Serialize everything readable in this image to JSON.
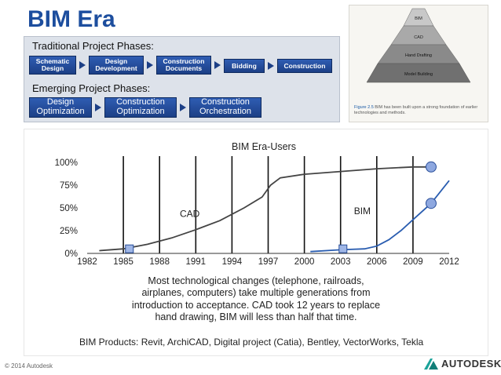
{
  "slide": {
    "title": "BIM Era",
    "copyright": "© 2014 Autodesk",
    "logo_text": "AUTODESK.",
    "accent_color": "#1d4e9e"
  },
  "phases": {
    "traditional_heading": "Traditional Project Phases:",
    "traditional": [
      "Schematic Design",
      "Design Development",
      "Construction Documents",
      "Bidding",
      "Construction"
    ],
    "emerging_heading": "Emerging Project Phases:",
    "emerging": [
      "Design Optimization",
      "Construction Optimization",
      "Construction Orchestration"
    ]
  },
  "pyramid": {
    "levels": [
      "BIM",
      "CAD",
      "Hand Drafting",
      "Model Building"
    ],
    "caption_fig": "Figure 2.5",
    "caption_text": "BIM has been built upon a strong foundation of earlier technologies and methods."
  },
  "chart_data": {
    "type": "line",
    "title": "BIM Era-Users",
    "x_ticks": [
      "1982",
      "1985",
      "1988",
      "1991",
      "1994",
      "1997",
      "2000",
      "2003",
      "2006",
      "2009",
      "2012"
    ],
    "y_ticks": [
      "0%",
      "25%",
      "50%",
      "75%",
      "100%"
    ],
    "xlim": [
      1982,
      2012
    ],
    "ylim": [
      0,
      100
    ],
    "series": [
      {
        "name": "CAD",
        "x": [
          1983,
          1985,
          1987,
          1989,
          1991,
          1993,
          1995,
          1996.5,
          1997.2,
          1998,
          2000,
          2003,
          2006,
          2009,
          2010.5
        ],
        "values": [
          3,
          5,
          10,
          17,
          26,
          36,
          50,
          62,
          75,
          83,
          87,
          90,
          93,
          95,
          95
        ]
      },
      {
        "name": "BIM",
        "x": [
          2000.5,
          2003,
          2005,
          2006,
          2007,
          2008,
          2009,
          2010.5,
          2012
        ],
        "values": [
          2,
          4,
          5,
          8,
          15,
          25,
          37,
          55,
          80
        ]
      }
    ],
    "markers": [
      {
        "shape": "square",
        "x": 1985.5,
        "y": 5
      },
      {
        "shape": "square",
        "x": 2003.2,
        "y": 5
      },
      {
        "shape": "circle",
        "x": 2010.5,
        "y": 95
      },
      {
        "shape": "circle",
        "x": 2010.5,
        "y": 55
      }
    ],
    "series_labels": [
      {
        "text": "CAD",
        "x": 1990.5,
        "y": 40
      },
      {
        "text": "BIM",
        "x": 2004.8,
        "y": 43
      }
    ],
    "note": "Most technological changes (telephone, railroads, airplanes, computers) take multiple generations from introduction to acceptance. CAD took 12 years to replace hand drawing, BIM will less than half that time.",
    "products": "BIM Products: Revit, ArchiCAD, Digital project (Catia), Bentley, VectorWorks, Tekla"
  }
}
